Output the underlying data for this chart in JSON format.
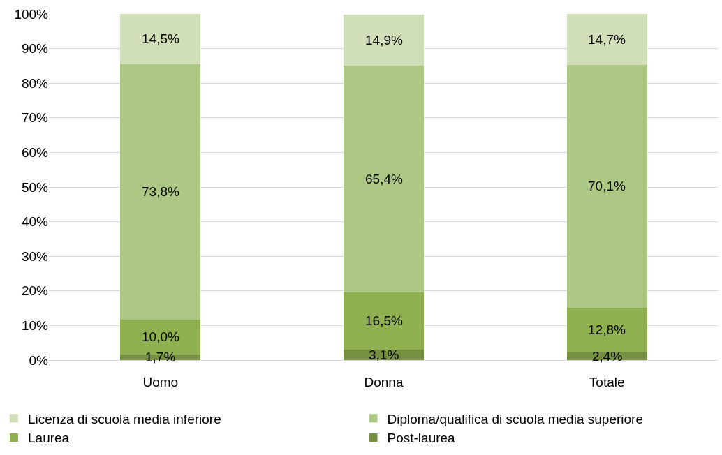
{
  "chart_data": {
    "type": "bar",
    "stacked": true,
    "categories": [
      "Uomo",
      "Donna",
      "Totale"
    ],
    "series": [
      {
        "name": "Post-laurea",
        "color": "#769042",
        "values": [
          1.7,
          3.1,
          2.4
        ],
        "value_labels": [
          "1,7%",
          "3,1%",
          "2,4%"
        ]
      },
      {
        "name": "Laurea",
        "color": "#8fb050",
        "values": [
          10.0,
          16.5,
          12.8
        ],
        "value_labels": [
          "10,0%",
          "16,5%",
          "12,8%"
        ]
      },
      {
        "name": "Diploma/qualifica di scuola media superiore",
        "color": "#adc785",
        "values": [
          73.8,
          65.4,
          70.1
        ],
        "value_labels": [
          "73,8%",
          "65,4%",
          "70,1%"
        ]
      },
      {
        "name": "Licenza di scuola media inferiore",
        "color": "#d0dfb8",
        "values": [
          14.5,
          14.9,
          14.7
        ],
        "value_labels": [
          "14,5%",
          "14,9%",
          "14,7%"
        ]
      }
    ],
    "ylim": [
      0,
      100
    ],
    "yticks": [
      {
        "value": 0,
        "label": "0%"
      },
      {
        "value": 10,
        "label": "10%"
      },
      {
        "value": 20,
        "label": "20%"
      },
      {
        "value": 30,
        "label": "30%"
      },
      {
        "value": 40,
        "label": "40%"
      },
      {
        "value": 50,
        "label": "50%"
      },
      {
        "value": 60,
        "label": "60%"
      },
      {
        "value": 70,
        "label": "70%"
      },
      {
        "value": 80,
        "label": "80%"
      },
      {
        "value": 90,
        "label": "90%"
      },
      {
        "value": 100,
        "label": "100%"
      }
    ],
    "grid": "y",
    "legend": "bottom"
  }
}
